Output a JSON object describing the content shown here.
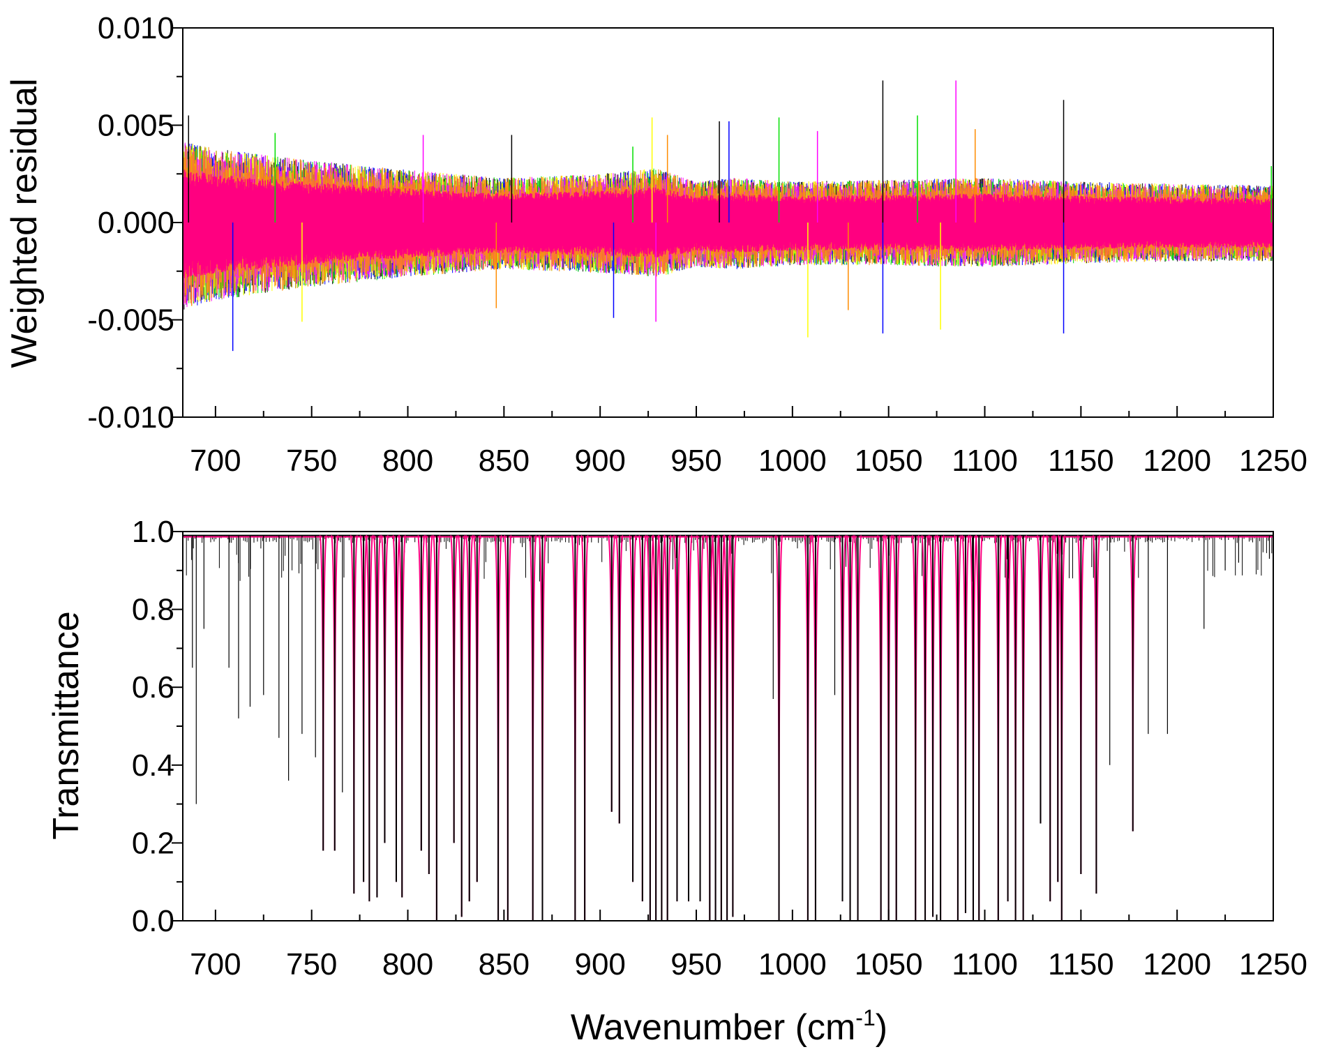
{
  "chart_data": [
    {
      "type": "line",
      "panel": "top",
      "title": "",
      "xlabel": "",
      "ylabel": "Weighted residual",
      "xlim": [
        683,
        1250
      ],
      "ylim": [
        -0.01,
        0.01
      ],
      "xticks": [
        "700",
        "750",
        "800",
        "850",
        "900",
        "950",
        "1000",
        "1050",
        "1100",
        "1150",
        "1200",
        "1250"
      ],
      "yticks": [
        "-0.010",
        "-0.005",
        "0.000",
        "0.005",
        "0.010"
      ],
      "grid": false,
      "legend": "none",
      "series_colors": [
        "#000000",
        "#0000ff",
        "#00e000",
        "#ffff00",
        "#ff00ff",
        "#ff8c00",
        "#ff0080"
      ],
      "envelope": {
        "x": [
          683,
          700,
          750,
          800,
          850,
          900,
          930,
          950,
          970,
          1000,
          1050,
          1100,
          1150,
          1200,
          1250
        ],
        "upper": [
          0.0042,
          0.0038,
          0.0032,
          0.0027,
          0.0023,
          0.0025,
          0.0028,
          0.0021,
          0.0023,
          0.0021,
          0.0022,
          0.0023,
          0.0021,
          0.002,
          0.0019
        ],
        "lower": [
          -0.0045,
          -0.004,
          -0.0033,
          -0.0028,
          -0.0024,
          -0.0026,
          -0.0028,
          -0.0023,
          -0.0024,
          -0.0022,
          -0.0022,
          -0.0023,
          -0.0021,
          -0.002,
          -0.002
        ]
      },
      "spikes": [
        {
          "x": 686,
          "y": 0.0055
        },
        {
          "x": 709,
          "y": -0.0066
        },
        {
          "x": 731,
          "y": 0.0046
        },
        {
          "x": 745,
          "y": -0.0051
        },
        {
          "x": 808,
          "y": 0.0045
        },
        {
          "x": 846,
          "y": -0.0044
        },
        {
          "x": 854,
          "y": 0.0045
        },
        {
          "x": 907,
          "y": -0.0049
        },
        {
          "x": 917,
          "y": 0.0039
        },
        {
          "x": 927,
          "y": 0.0054
        },
        {
          "x": 929,
          "y": -0.0051
        },
        {
          "x": 935,
          "y": 0.0045
        },
        {
          "x": 962,
          "y": 0.0052
        },
        {
          "x": 967,
          "y": 0.0052
        },
        {
          "x": 993,
          "y": 0.0054
        },
        {
          "x": 1008,
          "y": -0.0059
        },
        {
          "x": 1013,
          "y": 0.0047
        },
        {
          "x": 1029,
          "y": -0.0045
        },
        {
          "x": 1047,
          "y": 0.0073
        },
        {
          "x": 1047,
          "y": -0.0057
        },
        {
          "x": 1065,
          "y": 0.0055
        },
        {
          "x": 1077,
          "y": -0.0055
        },
        {
          "x": 1085,
          "y": 0.0073
        },
        {
          "x": 1095,
          "y": 0.0048
        },
        {
          "x": 1141,
          "y": 0.0063
        },
        {
          "x": 1141,
          "y": -0.0057
        },
        {
          "x": 1249,
          "y": 0.0029
        }
      ]
    },
    {
      "type": "line",
      "panel": "bottom",
      "title": "",
      "xlabel": "Wavenumber (cm-1)",
      "ylabel": "Transmittance",
      "xlim": [
        683,
        1250
      ],
      "ylim": [
        0.0,
        1.0
      ],
      "xticks": [
        "700",
        "750",
        "800",
        "850",
        "900",
        "950",
        "1000",
        "1050",
        "1100",
        "1150",
        "1200",
        "1250"
      ],
      "yticks": [
        "0.0",
        "0.2",
        "0.4",
        "0.6",
        "0.8",
        "1.0"
      ],
      "grid": false,
      "legend": "none",
      "baseline": 0.99,
      "absorption_lines": [
        {
          "x": 688,
          "y": 0.65
        },
        {
          "x": 690,
          "y": 0.3
        },
        {
          "x": 694,
          "y": 0.75
        },
        {
          "x": 707,
          "y": 0.65
        },
        {
          "x": 712,
          "y": 0.52
        },
        {
          "x": 718,
          "y": 0.55
        },
        {
          "x": 725,
          "y": 0.58
        },
        {
          "x": 733,
          "y": 0.47
        },
        {
          "x": 738,
          "y": 0.36
        },
        {
          "x": 745,
          "y": 0.48
        },
        {
          "x": 752,
          "y": 0.42
        },
        {
          "x": 756,
          "y": 0.18
        },
        {
          "x": 762,
          "y": 0.18
        },
        {
          "x": 766,
          "y": 0.33
        },
        {
          "x": 772,
          "y": 0.07
        },
        {
          "x": 777,
          "y": 0.1
        },
        {
          "x": 780,
          "y": 0.05
        },
        {
          "x": 784,
          "y": 0.06
        },
        {
          "x": 788,
          "y": 0.2
        },
        {
          "x": 794,
          "y": 0.1
        },
        {
          "x": 797,
          "y": 0.06
        },
        {
          "x": 807,
          "y": 0.18
        },
        {
          "x": 811,
          "y": 0.12
        },
        {
          "x": 815,
          "y": 0.0
        },
        {
          "x": 824,
          "y": 0.2
        },
        {
          "x": 828,
          "y": 0.01
        },
        {
          "x": 832,
          "y": 0.05
        },
        {
          "x": 836,
          "y": 0.1
        },
        {
          "x": 847,
          "y": 0.0
        },
        {
          "x": 852,
          "y": 0.0
        },
        {
          "x": 865,
          "y": 0.0
        },
        {
          "x": 870,
          "y": 0.0
        },
        {
          "x": 887,
          "y": 0.0
        },
        {
          "x": 892,
          "y": 0.0
        },
        {
          "x": 906,
          "y": 0.28
        },
        {
          "x": 910,
          "y": 0.25
        },
        {
          "x": 917,
          "y": 0.1
        },
        {
          "x": 922,
          "y": 0.05
        },
        {
          "x": 926,
          "y": 0.0
        },
        {
          "x": 929,
          "y": 0.0
        },
        {
          "x": 932,
          "y": 0.0
        },
        {
          "x": 935,
          "y": 0.0
        },
        {
          "x": 940,
          "y": 0.05
        },
        {
          "x": 946,
          "y": 0.05
        },
        {
          "x": 952,
          "y": 0.05
        },
        {
          "x": 957,
          "y": 0.0
        },
        {
          "x": 960,
          "y": 0.0
        },
        {
          "x": 963,
          "y": 0.0
        },
        {
          "x": 966,
          "y": 0.0
        },
        {
          "x": 969,
          "y": 0.01
        },
        {
          "x": 990,
          "y": 0.57
        },
        {
          "x": 993,
          "y": 0.0
        },
        {
          "x": 1008,
          "y": 0.0
        },
        {
          "x": 1012,
          "y": 0.0
        },
        {
          "x": 1022,
          "y": 0.58
        },
        {
          "x": 1026,
          "y": 0.05
        },
        {
          "x": 1030,
          "y": 0.0
        },
        {
          "x": 1034,
          "y": 0.0
        },
        {
          "x": 1046,
          "y": 0.0
        },
        {
          "x": 1050,
          "y": 0.0
        },
        {
          "x": 1054,
          "y": 0.0
        },
        {
          "x": 1064,
          "y": 0.0
        },
        {
          "x": 1069,
          "y": 0.0
        },
        {
          "x": 1073,
          "y": 0.01
        },
        {
          "x": 1077,
          "y": 0.0
        },
        {
          "x": 1086,
          "y": 0.0
        },
        {
          "x": 1090,
          "y": 0.02
        },
        {
          "x": 1094,
          "y": 0.0
        },
        {
          "x": 1097,
          "y": 0.0
        },
        {
          "x": 1107,
          "y": 0.0
        },
        {
          "x": 1112,
          "y": 0.05
        },
        {
          "x": 1116,
          "y": 0.0
        },
        {
          "x": 1120,
          "y": 0.0
        },
        {
          "x": 1129,
          "y": 0.25
        },
        {
          "x": 1134,
          "y": 0.05
        },
        {
          "x": 1138,
          "y": 0.1
        },
        {
          "x": 1140,
          "y": 0.0
        },
        {
          "x": 1150,
          "y": 0.12
        },
        {
          "x": 1158,
          "y": 0.07
        },
        {
          "x": 1165,
          "y": 0.4
        },
        {
          "x": 1177,
          "y": 0.23
        },
        {
          "x": 1185,
          "y": 0.48
        },
        {
          "x": 1195,
          "y": 0.48
        },
        {
          "x": 1214,
          "y": 0.75
        },
        {
          "x": 1225,
          "y": 0.9
        },
        {
          "x": 1232,
          "y": 0.92
        },
        {
          "x": 1248,
          "y": 0.93
        }
      ],
      "fit_color": "#ff0080"
    }
  ]
}
